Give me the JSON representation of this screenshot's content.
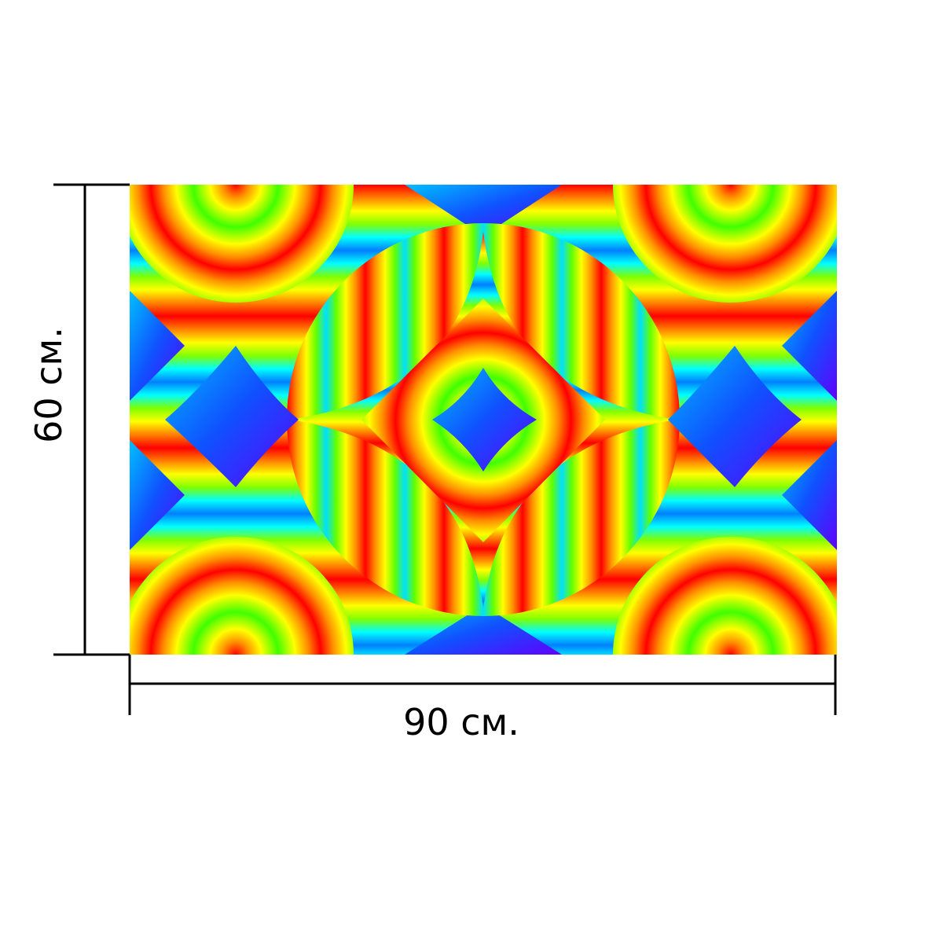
{
  "dimensions": {
    "width_label": "90 см.",
    "height_label": "60 см."
  }
}
